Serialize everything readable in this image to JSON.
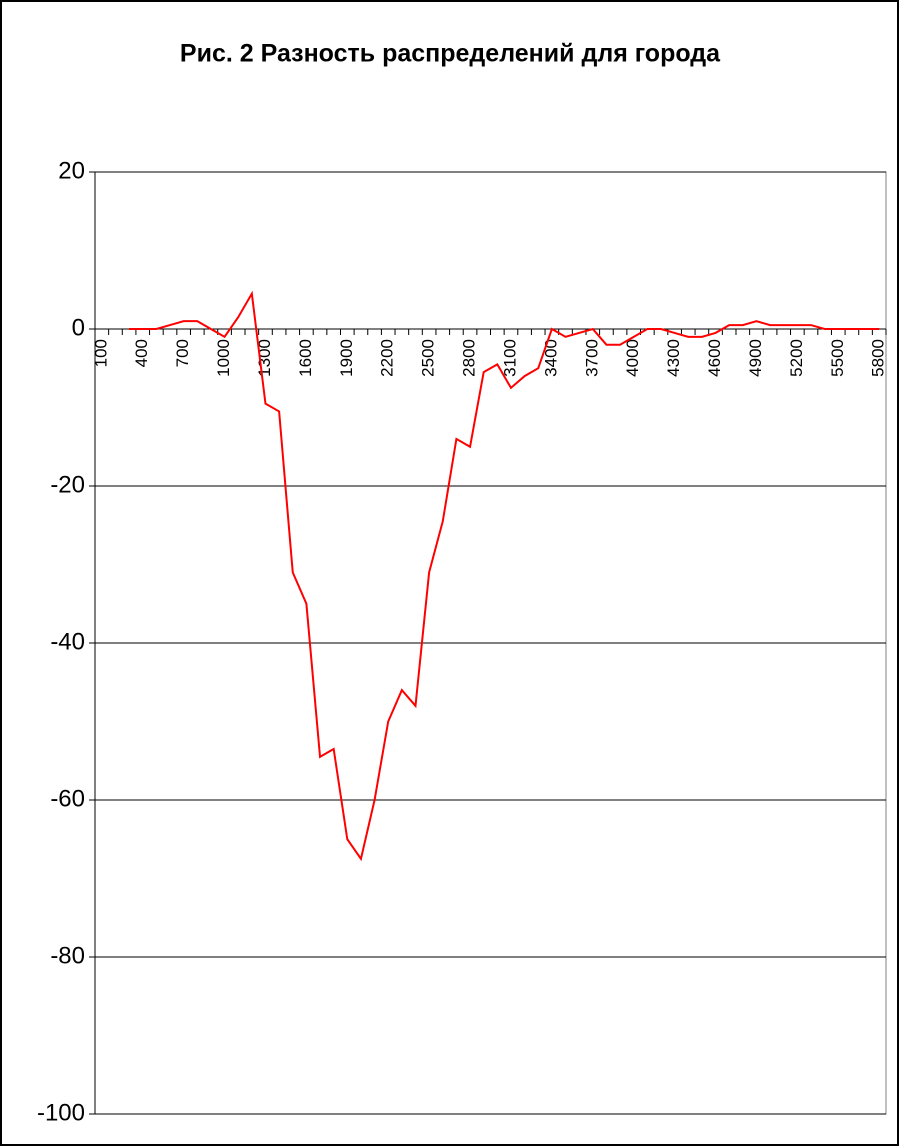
{
  "chart_data": {
    "type": "line",
    "title": "Рис. 2 Разность распределений для города",
    "categories": [
      "100",
      null,
      null,
      "400",
      null,
      null,
      "700",
      null,
      null,
      "1000",
      null,
      null,
      "1300",
      null,
      null,
      "1600",
      null,
      null,
      "1900",
      null,
      null,
      "2200",
      null,
      null,
      "2500",
      null,
      null,
      "2800",
      null,
      null,
      "3100",
      null,
      null,
      "3400",
      null,
      null,
      "3700",
      null,
      null,
      "4000",
      null,
      null,
      "4300",
      null,
      null,
      "4600",
      null,
      null,
      "4900",
      null,
      null,
      "5200",
      null,
      null,
      "5500",
      null,
      null,
      "5800"
    ],
    "series": [
      {
        "color": "#ff0000",
        "values": [
          null,
          null,
          0,
          0,
          0,
          0.5,
          1,
          1,
          0,
          -1,
          1.5,
          4.5,
          -9.5,
          -10.5,
          -31,
          -35,
          -54.5,
          -53.5,
          -65,
          -67.5,
          -60,
          -50,
          -46,
          -48,
          -31,
          -24.5,
          -14,
          -15,
          -5.5,
          -4.5,
          -7.5,
          -6,
          -5,
          0,
          -1,
          -0.5,
          0,
          -2,
          -2,
          -1,
          0,
          0,
          -0.5,
          -1,
          -1,
          -0.5,
          0.5,
          0.5,
          1,
          0.5,
          0.5,
          0.5,
          0.5,
          0,
          0,
          0,
          0,
          0
        ]
      }
    ],
    "ylim": [
      -100,
      20
    ],
    "yticks": [
      -100,
      -80,
      -60,
      -40,
      -20,
      0,
      20
    ],
    "grid": true
  }
}
